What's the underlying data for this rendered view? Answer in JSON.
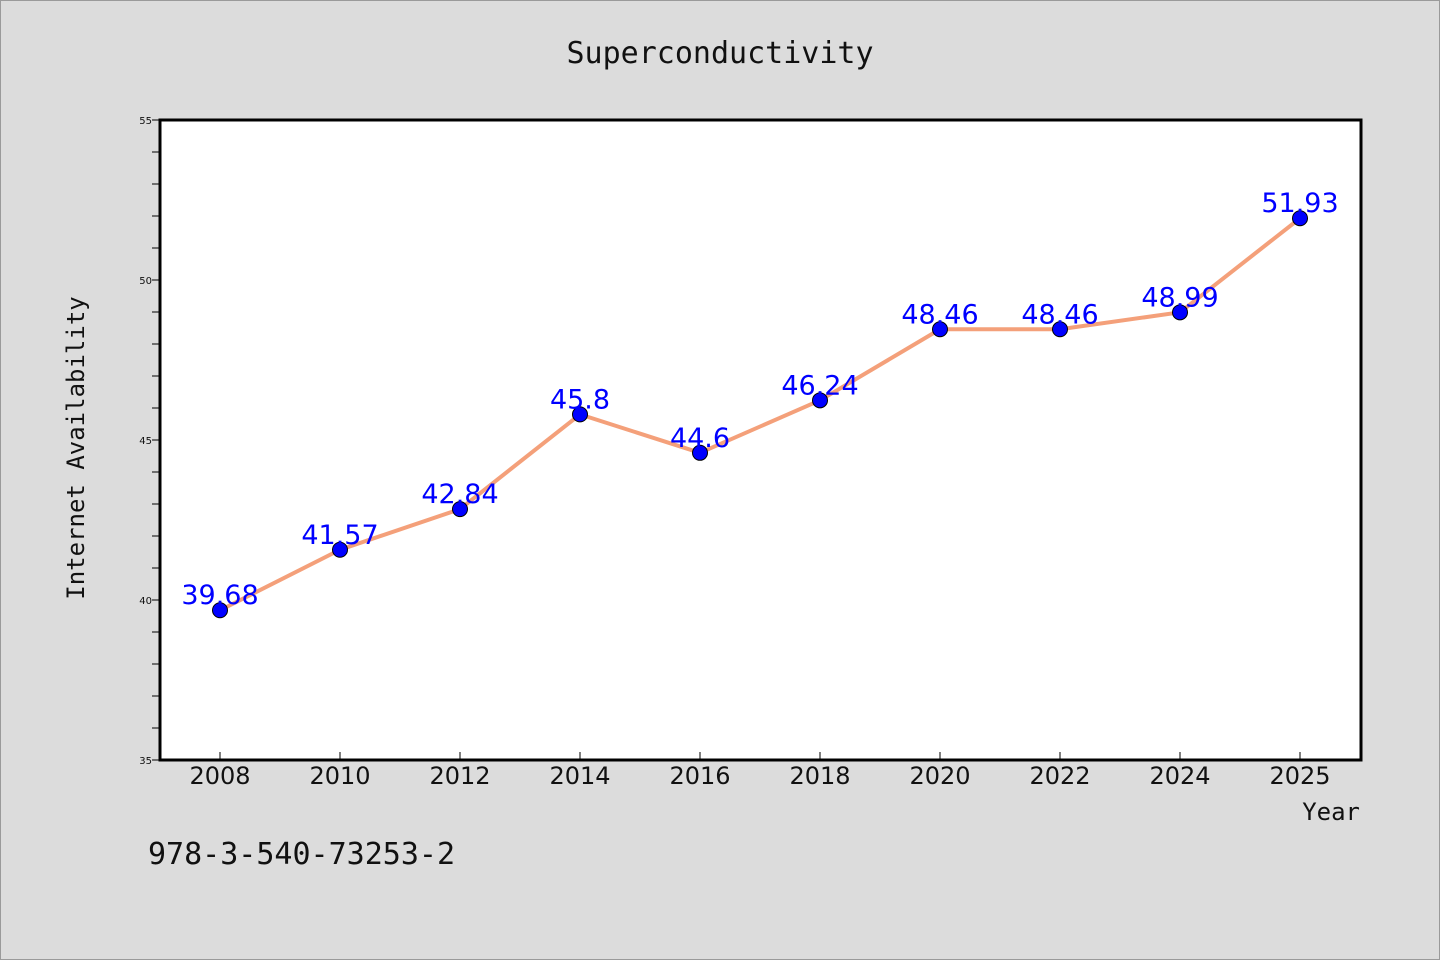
{
  "chart_data": {
    "type": "line",
    "title": "Superconductivity",
    "xlabel": "Year",
    "ylabel": "Internet Availability",
    "categories": [
      "2008",
      "2010",
      "2012",
      "2014",
      "2016",
      "2018",
      "2020",
      "2022",
      "2024",
      "2025"
    ],
    "series": [
      {
        "values": [
          39.68,
          41.57,
          42.84,
          45.8,
          44.6,
          46.24,
          48.46,
          48.46,
          48.99,
          51.93
        ],
        "labels": [
          "39.68",
          "41.57",
          "42.84",
          "45.8",
          "44.6",
          "46.24",
          "48.46",
          "48.46",
          "48.99",
          "51.93"
        ],
        "line_color": "#f4a07a",
        "marker_color": "#0000ff",
        "label_color": "#0000ff"
      }
    ],
    "ylim": [
      35,
      55
    ],
    "yticks": [
      "35",
      "40",
      "45",
      "50",
      "55"
    ],
    "grid": false,
    "legend": "none"
  },
  "footer": {
    "code": "978-3-540-73253-2"
  }
}
